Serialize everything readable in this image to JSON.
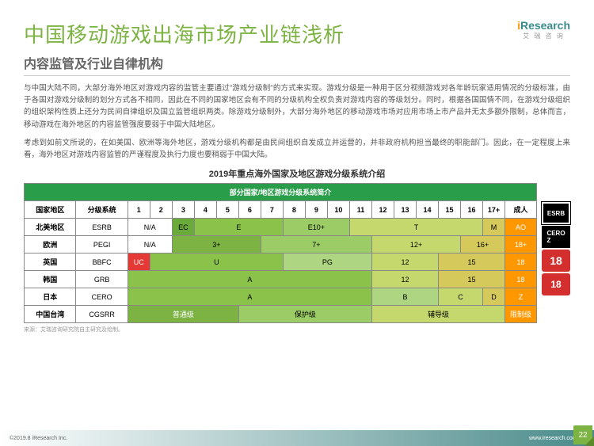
{
  "title": "中国移动游戏出海市场产业链浅析",
  "subtitle": "内容监管及行业自律机构",
  "logo": {
    "brand": "iResearch",
    "sub": "艾 瑞 咨 询"
  },
  "paragraph1": "与中国大陆不同，大部分海外地区对游戏内容的监管主要通过\"游戏分级制\"的方式来实现。游戏分级是一种用于区分视频游戏对各年龄玩家适用情况的分级标准，由于各国对游戏分级制的划分方式各不相同，因此在不同的国家地区会有不同的分级机构全权负责对游戏内容的等级划分。同时，根据各国国情不同，在游戏分级组织的组织架构性质上还分为民间自律组织及国立监管组织两类。除游戏分级制外，大部分海外地区的移动游戏市场对应用市场上市产品并无太多额外限制，总体而言，移动游戏在海外地区的内容监管强度要弱于中国大陆地区。",
  "paragraph2": "考虑到如前文所说的，在如美国、欧洲等海外地区，游戏分级机构都是由民间组织自发成立并运营的，并非政府机构担当最终的职能部门。因此，在一定程度上来看，海外地区对游戏内容监管的严谨程度及执行力度也要稍弱于中国大陆。",
  "chart_title": "2019年重点海外国家及地区游戏分级系统介绍",
  "banner": "部分国家/地区游戏分级系统简介",
  "headers": {
    "region": "国家地区",
    "system": "分级系统",
    "ages": [
      "1",
      "2",
      "3",
      "4",
      "5",
      "6",
      "7",
      "8",
      "9",
      "10",
      "11",
      "12",
      "13",
      "14",
      "15",
      "16",
      "17+"
    ],
    "adult": "成人"
  },
  "rows": [
    {
      "region": "北美地区",
      "system": "ESRB",
      "cells": [
        {
          "label": "N/A",
          "span": 2,
          "bg": "#ffffff"
        },
        {
          "label": "EC",
          "span": 1,
          "bg": "#6aaa3a"
        },
        {
          "label": "E",
          "span": 4,
          "bg": "#8bc34a"
        },
        {
          "label": "E10+",
          "span": 3,
          "bg": "#9ccc65"
        },
        {
          "label": "T",
          "span": 6,
          "bg": "#c5d86d"
        },
        {
          "label": "M",
          "span": 1,
          "bg": "#d4c95a"
        }
      ],
      "adult": {
        "label": "AO",
        "bg": "#ff9800"
      }
    },
    {
      "region": "欧洲",
      "system": "PEGI",
      "cells": [
        {
          "label": "N/A",
          "span": 2,
          "bg": "#ffffff"
        },
        {
          "label": "3+",
          "span": 4,
          "bg": "#7cb342"
        },
        {
          "label": "7+",
          "span": 5,
          "bg": "#9ccc65"
        },
        {
          "label": "12+",
          "span": 4,
          "bg": "#c5d86d"
        },
        {
          "label": "16+",
          "span": 2,
          "bg": "#d4c95a"
        }
      ],
      "adult": {
        "label": "18+",
        "bg": "#ff9800"
      }
    },
    {
      "region": "英国",
      "system": "BBFC",
      "cells": [
        {
          "label": "UC",
          "span": 1,
          "bg": "#e53935",
          "fg": "#fff"
        },
        {
          "label": "U",
          "span": 6,
          "bg": "#8bc34a"
        },
        {
          "label": "PG",
          "span": 4,
          "bg": "#aed581"
        },
        {
          "label": "12",
          "span": 3,
          "bg": "#c5d86d"
        },
        {
          "label": "15",
          "span": 3,
          "bg": "#d4c95a"
        }
      ],
      "adult": {
        "label": "18",
        "bg": "#ff9800"
      }
    },
    {
      "region": "韩国",
      "system": "GRB",
      "cells": [
        {
          "label": "A",
          "span": 11,
          "bg": "#8bc34a"
        },
        {
          "label": "12",
          "span": 3,
          "bg": "#c5d86d"
        },
        {
          "label": "15",
          "span": 3,
          "bg": "#d4c95a"
        }
      ],
      "adult": {
        "label": "18",
        "bg": "#ff9800"
      }
    },
    {
      "region": "日本",
      "system": "CERO",
      "cells": [
        {
          "label": "A",
          "span": 11,
          "bg": "#8bc34a"
        },
        {
          "label": "B",
          "span": 3,
          "bg": "#aed581"
        },
        {
          "label": "C",
          "span": 2,
          "bg": "#c5d86d"
        },
        {
          "label": "D",
          "span": 1,
          "bg": "#d4c95a"
        }
      ],
      "adult": {
        "label": "Z",
        "bg": "#ff9800"
      }
    },
    {
      "region": "中国台湾",
      "system": "CGSRR",
      "cells": [
        {
          "label": "普通级",
          "span": 5,
          "bg": "#7cb342",
          "fg": "#fff"
        },
        {
          "label": "保护级",
          "span": 6,
          "bg": "#9ccc65"
        },
        {
          "label": "辅导级",
          "span": 6,
          "bg": "#c5d86d"
        }
      ],
      "adult": {
        "label": "限制级",
        "bg": "#ff9800"
      }
    }
  ],
  "source": "来源：艾瑞咨询研究院自主研究及绘制。",
  "footer": {
    "copyright": "©2019.8 iResearch Inc.",
    "url": "www.iresearch.com.cn"
  },
  "page_number": "22",
  "side_icons": [
    "ESRB",
    "CERO Z",
    "18",
    "18"
  ]
}
